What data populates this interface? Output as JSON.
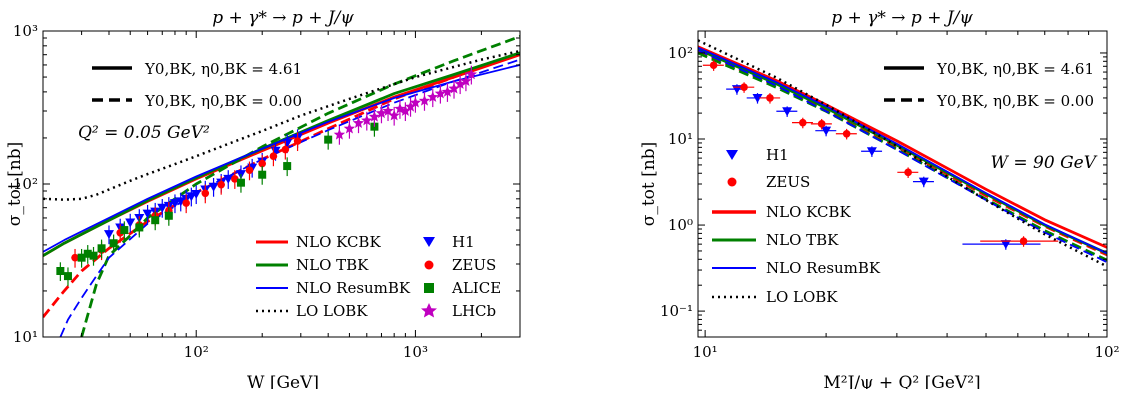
{
  "chart_data": [
    {
      "type": "line",
      "title": "p + γ* → p + J/ψ",
      "xlabel": "W [GeV]",
      "ylabel": "σ_tot [nb]",
      "xscale": "log",
      "yscale": "log",
      "xlim": [
        20,
        3000
      ],
      "ylim": [
        10,
        1000
      ],
      "grid": false,
      "legend_placement": "bottom-right",
      "xticks": [
        {
          "value": 100,
          "label": "10²"
        },
        {
          "value": 1000,
          "label": "10³"
        }
      ],
      "yticks": [
        {
          "value": 10,
          "label": "10¹"
        },
        {
          "value": 100,
          "label": "10²"
        },
        {
          "value": 1000,
          "label": "10³"
        }
      ],
      "annotations": [
        {
          "text": "Y0,BK, η0,BK = 4.61",
          "style": "solid"
        },
        {
          "text": "Y0,BK, η0,BK = 0.00",
          "style": "dashed"
        },
        {
          "text": "Q² = 0.05 GeV²",
          "style": "text"
        }
      ],
      "series": [
        {
          "name": "NLO KCBK",
          "kind": "line",
          "color": "#ff0000",
          "style": "solid",
          "x": [
            20,
            25,
            30,
            40,
            60,
            100,
            200,
            400,
            800,
            1500,
            3000
          ],
          "y": [
            34,
            41,
            47,
            58,
            77,
            108,
            165,
            250,
            370,
            500,
            700
          ]
        },
        {
          "name": "NLO KCBK",
          "kind": "line",
          "color": "#ff0000",
          "style": "dashed",
          "x": [
            20,
            25,
            30,
            40,
            60,
            100,
            200,
            400,
            800,
            1500,
            3000
          ],
          "y": [
            13.5,
            20,
            27,
            38,
            57,
            88,
            145,
            230,
            360,
            500,
            720
          ]
        },
        {
          "name": "NLO TBK",
          "kind": "line",
          "color": "#008000",
          "style": "solid",
          "x": [
            20,
            25,
            30,
            40,
            60,
            100,
            200,
            400,
            800,
            1500,
            3000
          ],
          "y": [
            34,
            41,
            47,
            58,
            78,
            110,
            170,
            260,
            390,
            520,
            720
          ]
        },
        {
          "name": "NLO TBK",
          "kind": "line",
          "color": "#008000",
          "style": "dashed",
          "x": [
            30,
            35,
            40,
            50,
            60,
            80,
            100,
            200,
            400,
            800,
            1500,
            3000
          ],
          "y": [
            10,
            22,
            34,
            46,
            60,
            80,
            100,
            175,
            290,
            450,
            640,
            920
          ]
        },
        {
          "name": "NLO ResumBK",
          "kind": "line",
          "color": "#0000ff",
          "style": "solid",
          "x": [
            20,
            25,
            30,
            40,
            60,
            100,
            200,
            400,
            800,
            1500,
            3000
          ],
          "y": [
            36,
            43,
            49,
            60,
            80,
            112,
            170,
            255,
            365,
            470,
            600
          ]
        },
        {
          "name": "NLO ResumBK",
          "kind": "line",
          "color": "#0000ff",
          "style": "dashed",
          "x": [
            24,
            26,
            30,
            35,
            40,
            60,
            100,
            200,
            400,
            800,
            1500,
            3000
          ],
          "y": [
            10,
            13,
            18,
            25,
            33,
            55,
            88,
            145,
            225,
            340,
            470,
            650
          ]
        },
        {
          "name": "LO LOBK",
          "kind": "line",
          "color": "#000000",
          "style": "dotted",
          "x": [
            20,
            25,
            30,
            35,
            40,
            50,
            60,
            80,
            100,
            150,
            200,
            300,
            500,
            1000,
            2000,
            3000
          ],
          "y": [
            80,
            79,
            80,
            85,
            92,
            105,
            116,
            135,
            152,
            190,
            222,
            280,
            360,
            500,
            650,
            740
          ]
        },
        {
          "name": "H1",
          "kind": "scatter",
          "marker": "triangle-down",
          "color": "#0000ff",
          "x": [
            40,
            45,
            50,
            55,
            60,
            65,
            70,
            75,
            80,
            85,
            90,
            95,
            100,
            110,
            120,
            130,
            140,
            160,
            180,
            200,
            230,
            260,
            290
          ],
          "y": [
            47,
            52,
            56,
            60,
            64,
            66,
            70,
            72,
            75,
            77,
            80,
            83,
            86,
            92,
            96,
            102,
            108,
            116,
            128,
            140,
            165,
            185,
            200
          ]
        },
        {
          "name": "ZEUS",
          "kind": "scatter",
          "marker": "circle",
          "color": "#ff0000",
          "x": [
            28,
            37,
            45,
            55,
            65,
            75,
            90,
            110,
            130,
            150,
            175,
            200,
            225,
            255,
            290
          ],
          "y": [
            33,
            37,
            48,
            54,
            62,
            67,
            75,
            87,
            99,
            108,
            123,
            136,
            152,
            168,
            191
          ]
        },
        {
          "name": "ALICE",
          "kind": "scatter",
          "marker": "square",
          "color": "#008000",
          "x": [
            24,
            26,
            30,
            32,
            34,
            37,
            42,
            47,
            55,
            65,
            75,
            160,
            200,
            260,
            400,
            650
          ],
          "y": [
            27,
            25,
            33,
            35,
            34,
            38,
            41,
            50,
            52,
            58,
            62,
            102,
            115,
            131,
            195,
            237
          ]
        },
        {
          "name": "LHCb",
          "kind": "scatter",
          "marker": "star",
          "color": "#c000c0",
          "x": [
            450,
            500,
            550,
            600,
            650,
            700,
            750,
            800,
            850,
            900,
            950,
            1000,
            1100,
            1200,
            1300,
            1400,
            1500,
            1600,
            1700,
            1800
          ],
          "y": [
            210,
            230,
            250,
            260,
            275,
            290,
            300,
            280,
            310,
            300,
            320,
            340,
            350,
            370,
            390,
            400,
            420,
            450,
            470,
            520
          ]
        }
      ]
    },
    {
      "type": "line",
      "title": "p + γ* → p + J/ψ",
      "xlabel": "M²J/ψ + Q² [GeV²]",
      "ylabel": "σ_tot [nb]",
      "xscale": "log",
      "yscale": "log",
      "xlim": [
        9.6,
        100
      ],
      "ylim": [
        0.05,
        180
      ],
      "grid": false,
      "legend_placement": "left",
      "xticks": [
        {
          "value": 10,
          "label": "10¹"
        },
        {
          "value": 100,
          "label": "10²"
        }
      ],
      "yticks": [
        {
          "value": 0.1,
          "label": "10⁻¹"
        },
        {
          "value": 1,
          "label": "10⁰"
        },
        {
          "value": 10,
          "label": "10¹"
        },
        {
          "value": 100,
          "label": "10²"
        }
      ],
      "annotations": [
        {
          "text": "Y0,BK, η0,BK = 4.61",
          "style": "solid"
        },
        {
          "text": "Y0,BK, η0,BK = 0.00",
          "style": "dashed"
        },
        {
          "text": "W = 90 GeV",
          "style": "text"
        }
      ],
      "series": [
        {
          "name": "NLO KCBK",
          "kind": "line",
          "color": "#ff0000",
          "style": "solid",
          "x": [
            9.6,
            15,
            20,
            30,
            50,
            70,
            100
          ],
          "y": [
            118,
            48,
            25,
            9.5,
            2.6,
            1.15,
            0.55
          ]
        },
        {
          "name": "NLO KCBK",
          "kind": "line",
          "color": "#ff0000",
          "style": "dashed",
          "x": [
            9.6,
            15,
            20,
            30,
            50,
            70,
            100
          ],
          "y": [
            105,
            42,
            22,
            8.2,
            2.2,
            0.97,
            0.45
          ]
        },
        {
          "name": "NLO TBK",
          "kind": "line",
          "color": "#008000",
          "style": "solid",
          "x": [
            9.6,
            15,
            20,
            30,
            50,
            70,
            100
          ],
          "y": [
            110,
            44,
            23,
            8.5,
            2.3,
            1.0,
            0.47
          ]
        },
        {
          "name": "NLO TBK",
          "kind": "line",
          "color": "#008000",
          "style": "dashed",
          "x": [
            9.6,
            15,
            20,
            30,
            50,
            70,
            100
          ],
          "y": [
            100,
            40,
            21,
            7.6,
            2.0,
            0.86,
            0.39
          ]
        },
        {
          "name": "NLO ResumBK",
          "kind": "line",
          "color": "#0000ff",
          "style": "solid",
          "x": [
            9.6,
            15,
            20,
            30,
            50,
            70,
            100
          ],
          "y": [
            115,
            46,
            24,
            8.8,
            2.35,
            1.02,
            0.47
          ]
        },
        {
          "name": "NLO ResumBK",
          "kind": "line",
          "color": "#0000ff",
          "style": "dashed",
          "x": [
            9.6,
            15,
            20,
            30,
            50,
            70,
            100
          ],
          "y": [
            108,
            42,
            21,
            7.5,
            1.95,
            0.82,
            0.37
          ]
        },
        {
          "name": "LO LOBK",
          "kind": "line",
          "color": "#000000",
          "style": "dotted",
          "x": [
            9.6,
            15,
            20,
            30,
            50,
            70,
            100
          ],
          "y": [
            140,
            52,
            25,
            8.3,
            1.95,
            0.78,
            0.33
          ]
        },
        {
          "name": "H1",
          "kind": "scatter",
          "marker": "triangle-down",
          "color": "#0000ff",
          "x": [
            12,
            13.5,
            16,
            20,
            26,
            35,
            56
          ],
          "y": [
            38,
            30,
            21,
            12.5,
            7.2,
            3.2,
            0.6
          ]
        },
        {
          "name": "ZEUS",
          "kind": "scatter",
          "marker": "circle",
          "color": "#ff0000",
          "x": [
            10.5,
            12.5,
            14.5,
            17.5,
            19.5,
            22.5,
            32,
            62
          ],
          "y": [
            72,
            40,
            30,
            15.5,
            15,
            11.5,
            4.1,
            0.65
          ]
        }
      ]
    }
  ]
}
